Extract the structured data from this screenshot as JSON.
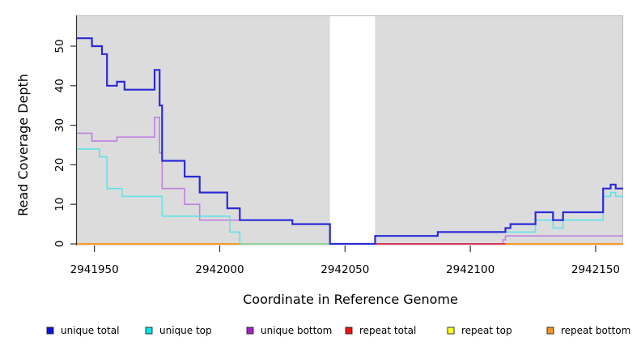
{
  "chart_data": {
    "type": "line",
    "subtype": "step",
    "title": "",
    "xlabel": "Coordinate in Reference Genome",
    "ylabel": "Read Coverage Depth",
    "xlim": [
      2941943,
      2942161
    ],
    "ylim": [
      0,
      57
    ],
    "grid": false,
    "panel_bg": "#dcdcdc",
    "panel_edge": "#b9b9b9",
    "axis_color": "#333333",
    "x_ticks": [
      2941950,
      2942000,
      2942050,
      2942100,
      2942150
    ],
    "x_tick_labels": [
      "2941950",
      "2942000",
      "2942050",
      "2942100",
      "2942150"
    ],
    "y_ticks": [
      0,
      10,
      20,
      30,
      40,
      50
    ],
    "y_tick_labels": [
      "0",
      "10",
      "20",
      "30",
      "40",
      "50"
    ],
    "gap_region": {
      "x_start": 2942044,
      "x_end": 2942062,
      "color": "#ffffff",
      "note": "white no-data band"
    },
    "series": [
      {
        "name": "unique total",
        "color": "#2b2bd5",
        "breakpoints": [
          [
            2941943,
            52
          ],
          [
            2941949,
            50
          ],
          [
            2941953,
            48
          ],
          [
            2941955,
            40
          ],
          [
            2941959,
            41
          ],
          [
            2941962,
            39
          ],
          [
            2941974,
            44
          ],
          [
            2941976,
            35
          ],
          [
            2941977,
            21
          ],
          [
            2941986,
            17
          ],
          [
            2941992,
            13
          ],
          [
            2942003,
            9
          ],
          [
            2942008,
            6
          ],
          [
            2942029,
            5
          ],
          [
            2942044,
            0
          ],
          [
            2942062,
            2
          ],
          [
            2942087,
            3
          ],
          [
            2942114,
            4
          ],
          [
            2942116,
            5
          ],
          [
            2942126,
            8
          ],
          [
            2942133,
            6
          ],
          [
            2942137,
            8
          ],
          [
            2942153,
            14
          ],
          [
            2942156,
            15
          ],
          [
            2942158,
            14
          ]
        ]
      },
      {
        "name": "unique top",
        "color": "#5fe3ea",
        "breakpoints": [
          [
            2941943,
            24
          ],
          [
            2941952,
            22
          ],
          [
            2941955,
            14
          ],
          [
            2941961,
            12
          ],
          [
            2941977,
            7
          ],
          [
            2942004,
            3
          ],
          [
            2942008,
            0
          ],
          [
            2942062,
            2
          ],
          [
            2942087,
            3
          ],
          [
            2942126,
            6
          ],
          [
            2942133,
            4
          ],
          [
            2942137,
            6
          ],
          [
            2942153,
            12
          ],
          [
            2942156,
            13
          ],
          [
            2942158,
            12
          ]
        ]
      },
      {
        "name": "unique bottom",
        "color": "#c17fe0",
        "breakpoints": [
          [
            2941943,
            28
          ],
          [
            2941949,
            26
          ],
          [
            2941959,
            27
          ],
          [
            2941974,
            32
          ],
          [
            2941976,
            23
          ],
          [
            2941977,
            14
          ],
          [
            2941986,
            10
          ],
          [
            2941992,
            6
          ],
          [
            2942029,
            5
          ],
          [
            2942044,
            0
          ],
          [
            2942113,
            1
          ],
          [
            2942114,
            2
          ]
        ]
      },
      {
        "name": "repeat total",
        "color": "#d93050",
        "breakpoints": [
          [
            2941943,
            0
          ]
        ]
      },
      {
        "name": "repeat top",
        "color": "#f2ef25",
        "breakpoints": [
          [
            2941943,
            0
          ]
        ]
      },
      {
        "name": "repeat bottom",
        "color": "#ff9b1a",
        "breakpoints": [
          [
            2941943,
            0
          ]
        ]
      }
    ],
    "zero_line_segments": [
      {
        "color": "#ff9b1a",
        "x_start": 2941943,
        "x_end": 2942008
      },
      {
        "color": "#8fd69b",
        "x_start": 2942008,
        "x_end": 2942044
      },
      {
        "color": "#d93050",
        "x_start": 2942062,
        "x_end": 2942114
      },
      {
        "color": "#ff9b1a",
        "x_start": 2942114,
        "x_end": 2942161
      }
    ],
    "legend_position": "bottom",
    "legend": [
      {
        "label": "unique total",
        "color": "#0f0fe0"
      },
      {
        "label": "unique top",
        "color": "#00e6ee"
      },
      {
        "label": "unique bottom",
        "color": "#a322cc"
      },
      {
        "label": "repeat total",
        "color": "#ee1111"
      },
      {
        "label": "repeat top",
        "color": "#fdfd22"
      },
      {
        "label": "repeat bottom",
        "color": "#f59622"
      }
    ]
  }
}
